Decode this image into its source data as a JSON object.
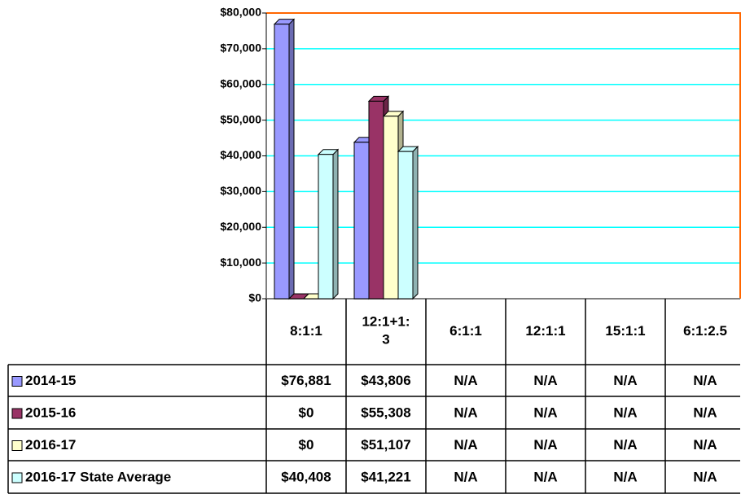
{
  "chart_data": {
    "type": "bar",
    "categories": [
      "8:1:1",
      "12:1+1:3",
      "6:1:1",
      "12:1:1",
      "15:1:1",
      "6:1:2.5"
    ],
    "series": [
      {
        "name": "2014-15",
        "color": "#9999ff",
        "values": [
          76881,
          43806,
          null,
          null,
          null,
          null
        ],
        "value_labels": [
          "$76,881",
          "$43,806",
          "N/A",
          "N/A",
          "N/A",
          "N/A"
        ]
      },
      {
        "name": "2015-16",
        "color": "#993366",
        "values": [
          0,
          55308,
          null,
          null,
          null,
          null
        ],
        "value_labels": [
          "$0",
          "$55,308",
          "N/A",
          "N/A",
          "N/A",
          "N/A"
        ]
      },
      {
        "name": "2016-17",
        "color": "#ffffcc",
        "values": [
          0,
          51107,
          null,
          null,
          null,
          null
        ],
        "value_labels": [
          "$0",
          "$51,107",
          "N/A",
          "N/A",
          "N/A",
          "N/A"
        ]
      },
      {
        "name": "2016-17 State Average",
        "color": "#ccffff",
        "values": [
          40408,
          41221,
          null,
          null,
          null,
          null
        ],
        "value_labels": [
          "$40,408",
          "$41,221",
          "N/A",
          "N/A",
          "N/A",
          "N/A"
        ]
      }
    ],
    "ylim": [
      0,
      80000
    ],
    "yticks": [
      {
        "value": 0,
        "label": "$0"
      },
      {
        "value": 10000,
        "label": "$10,000"
      },
      {
        "value": 20000,
        "label": "$20,000"
      },
      {
        "value": 30000,
        "label": "$30,000"
      },
      {
        "value": 40000,
        "label": "$40,000"
      },
      {
        "value": 50000,
        "label": "$50,000"
      },
      {
        "value": 60000,
        "label": "$60,000"
      },
      {
        "value": 70000,
        "label": "$70,000"
      },
      {
        "value": 80000,
        "label": "$80,000"
      }
    ],
    "grid": true
  }
}
